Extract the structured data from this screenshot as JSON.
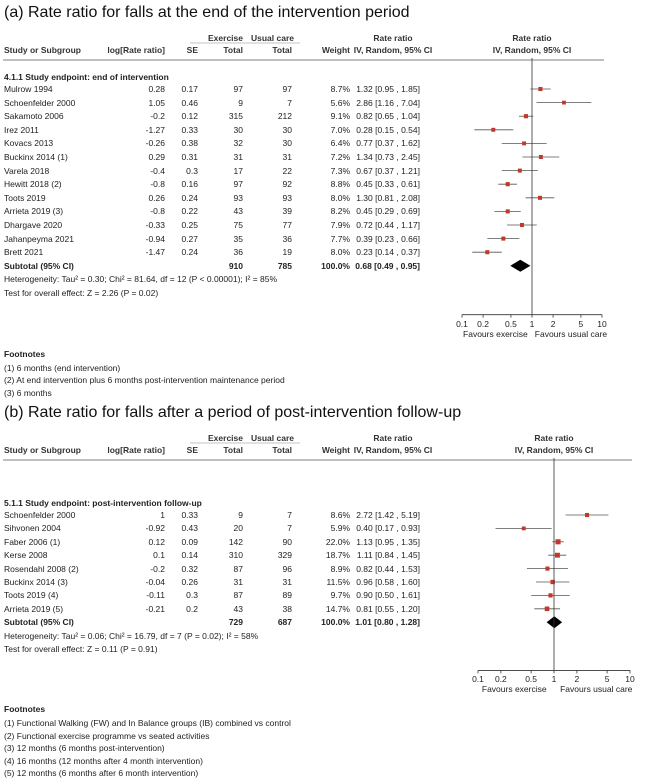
{
  "colors": {
    "point": "#c0392b",
    "line": "#555555",
    "diamond": "#000000"
  },
  "columns": {
    "study": "Study or Subgroup",
    "logrr": "log[Rate ratio]",
    "se": "SE",
    "exercise": "Exercise",
    "usual": "Usual care",
    "total": "Total",
    "weight": "Weight",
    "rr": "Rate ratio",
    "method": "IV, Random, 95% CI"
  },
  "chart_data": [
    {
      "type": "forest",
      "title": "(a)  Rate ratio for falls at the end of the intervention period",
      "subgroup": "4.1.1 Study endpoint: end of intervention",
      "axis": {
        "scale": "log",
        "ticks": [
          0.1,
          0.2,
          0.5,
          1,
          2,
          5,
          10
        ],
        "tick_labels": [
          "0.1",
          "0.2",
          "0.5",
          "1",
          "2",
          "5",
          "10"
        ],
        "left_label": "Favours exercise",
        "right_label": "Favours usual care"
      },
      "studies": [
        {
          "name": "Mulrow 1994",
          "logrr": "0.28",
          "se": "0.17",
          "ex": "97",
          "uc": "97",
          "weight": "8.7%",
          "ci": "1.32 [0.95 , 1.85]",
          "rr": 1.32,
          "lo": 0.95,
          "hi": 1.85
        },
        {
          "name": "Schoenfelder 2000",
          "logrr": "1.05",
          "se": "0.46",
          "ex": "9",
          "uc": "7",
          "weight": "5.6%",
          "ci": "2.86 [1.16 , 7.04]",
          "rr": 2.86,
          "lo": 1.16,
          "hi": 7.04
        },
        {
          "name": "Sakamoto 2006",
          "logrr": "-0.2",
          "se": "0.12",
          "ex": "315",
          "uc": "212",
          "weight": "9.1%",
          "ci": "0.82 [0.65 , 1.04]",
          "rr": 0.82,
          "lo": 0.65,
          "hi": 1.04
        },
        {
          "name": "Irez 2011",
          "logrr": "-1.27",
          "se": "0.33",
          "ex": "30",
          "uc": "30",
          "weight": "7.0%",
          "ci": "0.28 [0.15 , 0.54]",
          "rr": 0.28,
          "lo": 0.15,
          "hi": 0.54
        },
        {
          "name": "Kovacs 2013",
          "logrr": "-0.26",
          "se": "0.38",
          "ex": "32",
          "uc": "30",
          "weight": "6.4%",
          "ci": "0.77 [0.37 , 1.62]",
          "rr": 0.77,
          "lo": 0.37,
          "hi": 1.62
        },
        {
          "name": "Buckinx 2014 (1)",
          "logrr": "0.29",
          "se": "0.31",
          "ex": "31",
          "uc": "31",
          "weight": "7.2%",
          "ci": "1.34 [0.73 , 2.45]",
          "rr": 1.34,
          "lo": 0.73,
          "hi": 2.45
        },
        {
          "name": "Varela 2018",
          "logrr": "-0.4",
          "se": "0.3",
          "ex": "17",
          "uc": "22",
          "weight": "7.3%",
          "ci": "0.67 [0.37 , 1.21]",
          "rr": 0.67,
          "lo": 0.37,
          "hi": 1.21
        },
        {
          "name": "Hewitt 2018 (2)",
          "logrr": "-0.8",
          "se": "0.16",
          "ex": "97",
          "uc": "92",
          "weight": "8.8%",
          "ci": "0.45 [0.33 , 0.61]",
          "rr": 0.45,
          "lo": 0.33,
          "hi": 0.61
        },
        {
          "name": "Toots 2019",
          "logrr": "0.26",
          "se": "0.24",
          "ex": "93",
          "uc": "93",
          "weight": "8.0%",
          "ci": "1.30 [0.81 , 2.08]",
          "rr": 1.3,
          "lo": 0.81,
          "hi": 2.08
        },
        {
          "name": "Arrieta 2019 (3)",
          "logrr": "-0.8",
          "se": "0.22",
          "ex": "43",
          "uc": "39",
          "weight": "8.2%",
          "ci": "0.45 [0.29 , 0.69]",
          "rr": 0.45,
          "lo": 0.29,
          "hi": 0.69
        },
        {
          "name": "Dhargave 2020",
          "logrr": "-0.33",
          "se": "0.25",
          "ex": "75",
          "uc": "77",
          "weight": "7.9%",
          "ci": "0.72 [0.44 , 1.17]",
          "rr": 0.72,
          "lo": 0.44,
          "hi": 1.17
        },
        {
          "name": "Jahanpeyma 2021",
          "logrr": "-0.94",
          "se": "0.27",
          "ex": "35",
          "uc": "36",
          "weight": "7.7%",
          "ci": "0.39 [0.23 , 0.66]",
          "rr": 0.39,
          "lo": 0.23,
          "hi": 0.66
        },
        {
          "name": "Brett 2021",
          "logrr": "-1.47",
          "se": "0.24",
          "ex": "36",
          "uc": "19",
          "weight": "8.0%",
          "ci": "0.23 [0.14 , 0.37]",
          "rr": 0.23,
          "lo": 0.14,
          "hi": 0.37
        }
      ],
      "subtotal": {
        "label": "Subtotal (95% CI)",
        "ex": "910",
        "uc": "785",
        "weight": "100.0%",
        "ci": "0.68 [0.49 , 0.95]",
        "rr": 0.68,
        "lo": 0.49,
        "hi": 0.95
      },
      "heterogeneity": "Heterogeneity: Tau² = 0.30; Chi² = 81.64, df = 12 (P < 0.00001); I² = 85%",
      "overall": "Test for overall effect: Z = 2.26 (P = 0.02)",
      "footnotes_title": "Footnotes",
      "footnotes": [
        "(1) 6 months (end intervention)",
        "(2) At end intervention plus 6 months post-intervention maintenance period",
        "(3) 6 months"
      ]
    },
    {
      "type": "forest",
      "title": "(b)  Rate ratio for falls after a period of post-intervention follow-up",
      "subgroup": "5.1.1 Study endpoint: post-intervention follow-up",
      "axis": {
        "scale": "log",
        "ticks": [
          0.1,
          0.2,
          0.5,
          1,
          2,
          5,
          10
        ],
        "tick_labels": [
          "0.1",
          "0.2",
          "0.5",
          "1",
          "2",
          "5",
          "10"
        ],
        "left_label": "Favours exercise",
        "right_label": "Favours usual care"
      },
      "studies": [
        {
          "name": "Schoenfelder 2000",
          "logrr": "1",
          "se": "0.33",
          "ex": "9",
          "uc": "7",
          "weight": "8.6%",
          "ci": "2.72 [1.42 , 5.19]",
          "rr": 2.72,
          "lo": 1.42,
          "hi": 5.19
        },
        {
          "name": "Sihvonen 2004",
          "logrr": "-0.92",
          "se": "0.43",
          "ex": "20",
          "uc": "7",
          "weight": "5.9%",
          "ci": "0.40 [0.17 , 0.93]",
          "rr": 0.4,
          "lo": 0.17,
          "hi": 0.93
        },
        {
          "name": "Faber 2006 (1)",
          "logrr": "0.12",
          "se": "0.09",
          "ex": "142",
          "uc": "90",
          "weight": "22.0%",
          "ci": "1.13 [0.95 , 1.35]",
          "rr": 1.13,
          "lo": 0.95,
          "hi": 1.35
        },
        {
          "name": "Kerse 2008",
          "logrr": "0.1",
          "se": "0.14",
          "ex": "310",
          "uc": "329",
          "weight": "18.7%",
          "ci": "1.11 [0.84 , 1.45]",
          "rr": 1.11,
          "lo": 0.84,
          "hi": 1.45
        },
        {
          "name": "Rosendahl 2008 (2)",
          "logrr": "-0.2",
          "se": "0.32",
          "ex": "87",
          "uc": "96",
          "weight": "8.9%",
          "ci": "0.82 [0.44 , 1.53]",
          "rr": 0.82,
          "lo": 0.44,
          "hi": 1.53
        },
        {
          "name": "Buckinx 2014 (3)",
          "logrr": "-0.04",
          "se": "0.26",
          "ex": "31",
          "uc": "31",
          "weight": "11.5%",
          "ci": "0.96 [0.58 , 1.60]",
          "rr": 0.96,
          "lo": 0.58,
          "hi": 1.6
        },
        {
          "name": "Toots 2019 (4)",
          "logrr": "-0.11",
          "se": "0.3",
          "ex": "87",
          "uc": "89",
          "weight": "9.7%",
          "ci": "0.90 [0.50 , 1.61]",
          "rr": 0.9,
          "lo": 0.5,
          "hi": 1.61
        },
        {
          "name": "Arrieta 2019 (5)",
          "logrr": "-0.21",
          "se": "0.2",
          "ex": "43",
          "uc": "38",
          "weight": "14.7%",
          "ci": "0.81 [0.55 , 1.20]",
          "rr": 0.81,
          "lo": 0.55,
          "hi": 1.2
        }
      ],
      "subtotal": {
        "label": "Subtotal (95% CI)",
        "ex": "729",
        "uc": "687",
        "weight": "100.0%",
        "ci": "1.01 [0.80 , 1.28]",
        "rr": 1.01,
        "lo": 0.8,
        "hi": 1.28
      },
      "heterogeneity": "Heterogeneity: Tau² = 0.06; Chi² = 16.79, df = 7 (P = 0.02); I² = 58%",
      "overall": "Test for overall effect: Z = 0.11 (P = 0.91)",
      "footnotes_title": "Footnotes",
      "footnotes": [
        "(1) Functional Walking (FW) and In Balance groups (IB) combined vs control",
        "(2) Functional exercise programme vs seated activities",
        "(3) 12 months (6 months post-intervention)",
        "(4) 16 months (12 months after 4 month intervention)",
        "(5) 12 months (6 months after 6 month intervention)"
      ]
    }
  ]
}
